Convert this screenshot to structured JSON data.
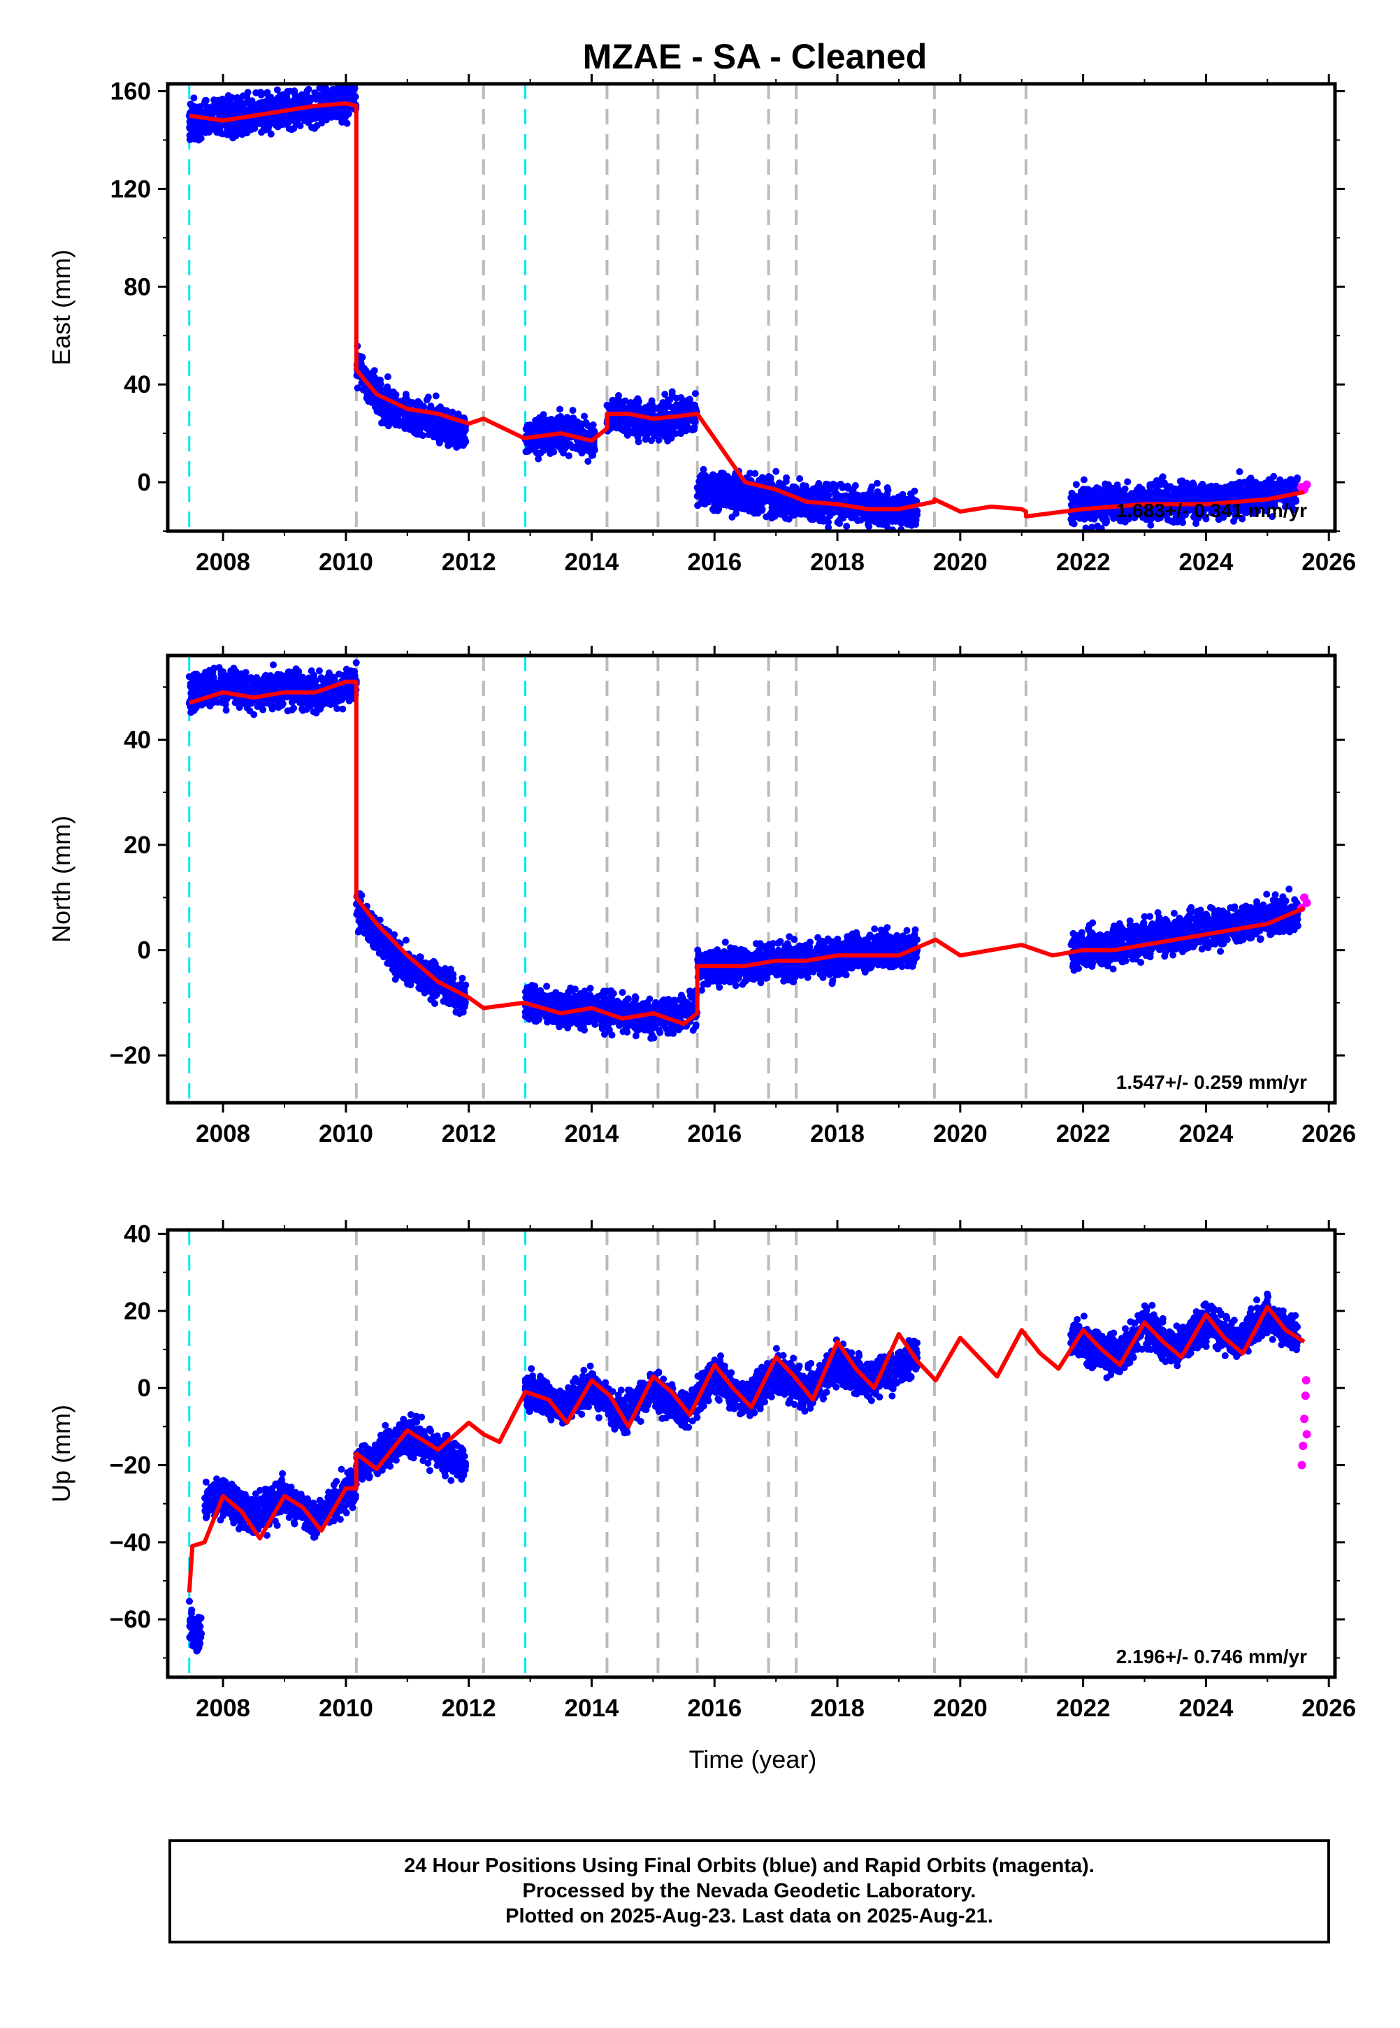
{
  "title": "MZAE  - SA - Cleaned",
  "x_axis_label": "Time (year)",
  "footer": {
    "line1": "24 Hour Positions Using Final Orbits (blue) and Rapid Orbits (magenta).",
    "line2": "Processed by the Nevada Geodetic Laboratory.",
    "line3": "Plotted on 2025-Aug-23. Last data on 2025-Aug-21."
  },
  "colors": {
    "final_orbits": "#0000ff",
    "rapid_orbits": "#ff00ff",
    "model_fit": "#ff0000",
    "equipment_change": "#bbbbbb",
    "earthquake": "#00e5ff"
  },
  "chart_data": [
    {
      "type": "scatter",
      "panel": "east",
      "ylabel": "East (mm)",
      "ylim": [
        -20,
        163
      ],
      "yticks": [
        0,
        40,
        80,
        120,
        160
      ],
      "xlim": [
        2007.1,
        2026.1
      ],
      "xticks": [
        2008,
        2010,
        2012,
        2014,
        2016,
        2018,
        2020,
        2022,
        2024,
        2026
      ],
      "rate": "1.683+/- 0.341 mm/yr",
      "gray_lines": [
        2010.17,
        2012.24,
        2014.25,
        2015.08,
        2015.72,
        2016.88,
        2017.33,
        2019.58,
        2021.07
      ],
      "cyan_lines": [
        2007.45,
        2012.92
      ],
      "segments": [
        {
          "x": [
            2007.45,
            2008.0,
            2008.5,
            2009.0,
            2009.5,
            2010.0,
            2010.17
          ],
          "y": [
            148,
            149,
            150,
            152,
            154,
            156,
            158
          ]
        },
        {
          "x": [
            2010.17,
            2010.5,
            2011.0,
            2011.5,
            2011.95
          ],
          "y": [
            48,
            35,
            28,
            25,
            20
          ]
        },
        {
          "x": [
            2012.92,
            2013.3,
            2013.7,
            2014.05
          ],
          "y": [
            18,
            20,
            19,
            17
          ]
        },
        {
          "x": [
            2014.25,
            2014.6,
            2015.0,
            2015.4,
            2015.72
          ],
          "y": [
            28,
            27,
            25,
            27,
            28
          ]
        },
        {
          "x": [
            2015.72,
            2016.5,
            2017.5,
            2018.5,
            2019.3
          ],
          "y": [
            -2,
            -5,
            -8,
            -10,
            -12
          ]
        },
        {
          "x": [
            2021.8,
            2022.5,
            2023.5,
            2024.5,
            2025.5
          ],
          "y": [
            -10,
            -9,
            -8,
            -7,
            -4
          ]
        }
      ],
      "rapid": {
        "x": [
          2025.55,
          2025.6,
          2025.64
        ],
        "y": [
          -2,
          -3,
          -1
        ]
      },
      "model": {
        "x": [
          2007.45,
          2008.0,
          2008.5,
          2009.0,
          2009.5,
          2010.0,
          2010.17,
          2010.17,
          2010.5,
          2011.0,
          2011.5,
          2012.0,
          2012.24,
          2012.9,
          2013.5,
          2014.0,
          2014.25,
          2014.25,
          2014.6,
          2015.0,
          2015.4,
          2015.72,
          2015.72,
          2016.5,
          2017.0,
          2017.5,
          2018.0,
          2018.5,
          2019.0,
          2019.58,
          2019.58,
          2020.0,
          2020.5,
          2021.0,
          2021.07,
          2021.07,
          2022.0,
          2023.0,
          2024.0,
          2025.0,
          2025.6
        ],
        "y": [
          150,
          148,
          150,
          152,
          154,
          155,
          154,
          46,
          36,
          30,
          28,
          24,
          26,
          18,
          20,
          17,
          22,
          28,
          28,
          26,
          27,
          28,
          28,
          0,
          -3,
          -8,
          -9,
          -11,
          -11,
          -8,
          -7,
          -12,
          -10,
          -11,
          -12,
          -14,
          -11,
          -9,
          -9,
          -7,
          -4
        ]
      }
    },
    {
      "type": "scatter",
      "panel": "north",
      "ylabel": "North (mm)",
      "ylim": [
        -29,
        56
      ],
      "yticks": [
        -20,
        0,
        20,
        40
      ],
      "xlim": [
        2007.1,
        2026.1
      ],
      "xticks": [
        2008,
        2010,
        2012,
        2014,
        2016,
        2018,
        2020,
        2022,
        2024,
        2026
      ],
      "rate": "1.547+/- 0.259 mm/yr",
      "gray_lines": [
        2010.17,
        2012.24,
        2014.25,
        2015.08,
        2015.72,
        2016.88,
        2017.33,
        2019.58,
        2021.07
      ],
      "cyan_lines": [
        2007.45,
        2012.92
      ],
      "segments": [
        {
          "x": [
            2007.45,
            2008.0,
            2008.5,
            2009.0,
            2009.5,
            2010.0,
            2010.17
          ],
          "y": [
            49,
            50,
            49,
            50,
            49,
            50,
            51
          ]
        },
        {
          "x": [
            2010.17,
            2010.5,
            2011.0,
            2011.5,
            2011.95
          ],
          "y": [
            8,
            3,
            -3,
            -6,
            -9
          ]
        },
        {
          "x": [
            2012.92,
            2013.5,
            2014.0,
            2014.5,
            2015.0,
            2015.5,
            2015.72
          ],
          "y": [
            -10,
            -11,
            -11,
            -12,
            -13,
            -12,
            -11
          ]
        },
        {
          "x": [
            2015.72,
            2016.5,
            2017.0,
            2017.5,
            2018.0,
            2018.5,
            2019.3
          ],
          "y": [
            -3,
            -3,
            -2,
            -2,
            -1,
            0,
            0
          ]
        },
        {
          "x": [
            2021.8,
            2022.5,
            2023.0,
            2023.5,
            2024.0,
            2024.5,
            2025.5
          ],
          "y": [
            0,
            1,
            2,
            3,
            4,
            5,
            7
          ]
        }
      ],
      "rapid": {
        "x": [
          2025.55,
          2025.6,
          2025.64
        ],
        "y": [
          8,
          10,
          9
        ]
      },
      "model": {
        "x": [
          2007.45,
          2008.0,
          2008.5,
          2009.0,
          2009.5,
          2010.0,
          2010.17,
          2010.17,
          2010.5,
          2011.0,
          2011.5,
          2012.0,
          2012.24,
          2012.9,
          2013.5,
          2014.0,
          2014.5,
          2015.0,
          2015.5,
          2015.72,
          2015.72,
          2016.5,
          2017.0,
          2017.5,
          2018.0,
          2018.5,
          2019.0,
          2019.6,
          2020.0,
          2020.5,
          2021.0,
          2021.5,
          2022.0,
          2022.5,
          2023.0,
          2023.5,
          2024.0,
          2024.5,
          2025.0,
          2025.6
        ],
        "y": [
          47,
          49,
          48,
          49,
          49,
          51,
          51,
          10,
          5,
          -1,
          -6,
          -9,
          -11,
          -10,
          -12,
          -11,
          -13,
          -12,
          -14,
          -12,
          -3,
          -3,
          -2,
          -2,
          -1,
          -1,
          -1,
          2,
          -1,
          0,
          1,
          -1,
          0,
          0,
          1,
          2,
          3,
          4,
          5,
          8
        ]
      }
    },
    {
      "type": "scatter",
      "panel": "up",
      "ylabel": "Up (mm)",
      "ylim": [
        -75,
        41
      ],
      "yticks": [
        -60,
        -40,
        -20,
        0,
        20,
        40
      ],
      "xlim": [
        2007.1,
        2026.1
      ],
      "xticks": [
        2008,
        2010,
        2012,
        2014,
        2016,
        2018,
        2020,
        2022,
        2024,
        2026
      ],
      "rate": "2.196+/- 0.746 mm/yr",
      "gray_lines": [
        2010.17,
        2012.24,
        2014.25,
        2015.08,
        2015.72,
        2016.88,
        2017.33,
        2019.58,
        2021.07
      ],
      "cyan_lines": [
        2007.45,
        2012.92
      ],
      "segments": [
        {
          "x": [
            2007.45,
            2007.55,
            2007.65
          ],
          "y": [
            -60,
            -65,
            -62
          ]
        },
        {
          "x": [
            2007.7,
            2008.0,
            2008.5,
            2009.0,
            2009.5,
            2010.0,
            2010.17
          ],
          "y": [
            -30,
            -28,
            -33,
            -28,
            -34,
            -27,
            -26
          ]
        },
        {
          "x": [
            2010.17,
            2010.5,
            2011.0,
            2011.5,
            2011.95
          ],
          "y": [
            -20,
            -18,
            -12,
            -16,
            -20
          ]
        },
        {
          "x": [
            2012.92,
            2013.5,
            2014.0,
            2014.5,
            2015.0,
            2015.5,
            2016.0,
            2016.5,
            2017.0,
            2017.5,
            2018.0,
            2018.5,
            2019.3
          ],
          "y": [
            0,
            -5,
            0,
            -7,
            0,
            -6,
            3,
            -3,
            4,
            -1,
            6,
            2,
            8
          ]
        },
        {
          "x": [
            2021.8,
            2022.2,
            2022.6,
            2023.0,
            2023.5,
            2024.0,
            2024.5,
            2025.0,
            2025.5
          ],
          "y": [
            14,
            10,
            8,
            16,
            10,
            17,
            12,
            19,
            13
          ]
        }
      ],
      "rapid": {
        "x": [
          2025.56,
          2025.58,
          2025.6,
          2025.62,
          2025.63,
          2025.64
        ],
        "y": [
          -20,
          -15,
          -8,
          -2,
          2,
          -12
        ]
      },
      "model": {
        "x": [
          2007.45,
          2007.5,
          2007.7,
          2008.0,
          2008.3,
          2008.6,
          2009.0,
          2009.3,
          2009.6,
          2010.0,
          2010.17,
          2010.17,
          2010.5,
          2011.0,
          2011.5,
          2012.0,
          2012.24,
          2012.5,
          2012.92,
          2013.3,
          2013.6,
          2014.0,
          2014.3,
          2014.6,
          2015.0,
          2015.3,
          2015.6,
          2016.0,
          2016.3,
          2016.6,
          2017.0,
          2017.3,
          2017.6,
          2018.0,
          2018.3,
          2018.6,
          2019.0,
          2019.3,
          2019.6,
          2020.0,
          2020.3,
          2020.6,
          2021.0,
          2021.3,
          2021.6,
          2022.0,
          2022.3,
          2022.6,
          2023.0,
          2023.3,
          2023.6,
          2024.0,
          2024.3,
          2024.6,
          2025.0,
          2025.3,
          2025.6
        ],
        "y": [
          -53,
          -41,
          -40,
          -28,
          -32,
          -39,
          -28,
          -31,
          -37,
          -26,
          -26,
          -17,
          -21,
          -11,
          -16,
          -9,
          -12,
          -14,
          -1,
          -3,
          -9,
          2,
          -2,
          -10,
          3,
          -1,
          -7,
          6,
          0,
          -5,
          8,
          3,
          -3,
          12,
          5,
          0,
          14,
          7,
          2,
          13,
          8,
          3,
          15,
          9,
          5,
          15,
          10,
          6,
          17,
          12,
          8,
          19,
          13,
          9,
          21,
          15,
          12
        ]
      }
    }
  ]
}
